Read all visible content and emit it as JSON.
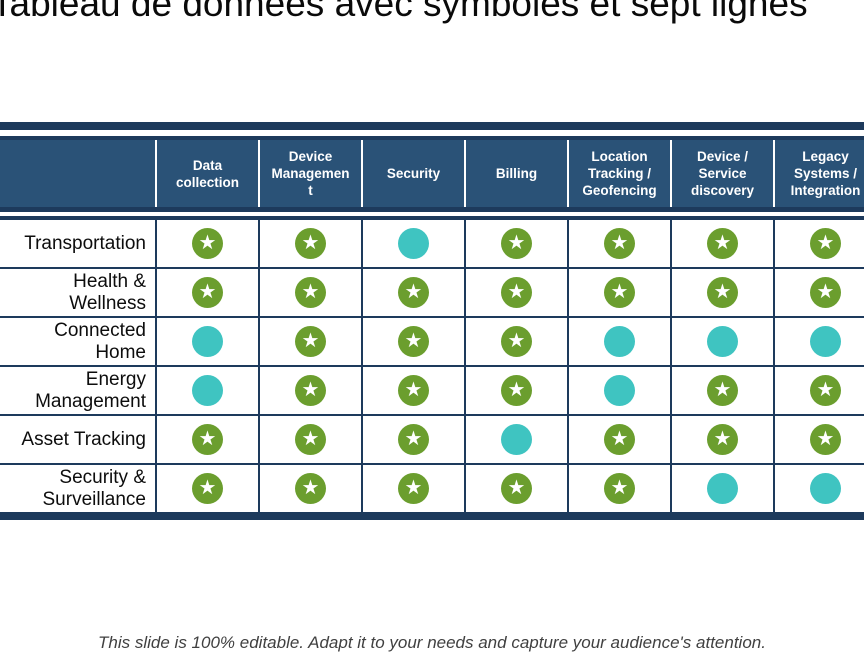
{
  "slide": {
    "title": "Tableau de données avec symboles et sept lignes",
    "footer_note": "This slide is 100% editable. Adapt it to your needs and capture your audience's attention."
  },
  "table": {
    "row_header_label": "",
    "columns": [
      "Data collection",
      "Device Management",
      "Security",
      "Billing",
      "Location Tracking / Geofencing",
      "Device / Service discovery",
      "Legacy Systems / Integration"
    ],
    "rows": [
      {
        "label": "Transportation",
        "cells": [
          "star",
          "star",
          "circle",
          "star",
          "star",
          "star",
          "star"
        ]
      },
      {
        "label": "Health & Wellness",
        "cells": [
          "star",
          "star",
          "star",
          "star",
          "star",
          "star",
          "star"
        ]
      },
      {
        "label": "Connected Home",
        "cells": [
          "circle",
          "star",
          "star",
          "star",
          "circle",
          "circle",
          "circle"
        ]
      },
      {
        "label": "Energy Management",
        "cells": [
          "circle",
          "star",
          "star",
          "star",
          "circle",
          "star",
          "star"
        ]
      },
      {
        "label": "Asset Tracking",
        "cells": [
          "star",
          "star",
          "star",
          "circle",
          "star",
          "star",
          "star"
        ]
      },
      {
        "label": "Security & Surveillance",
        "cells": [
          "star",
          "star",
          "star",
          "star",
          "star",
          "circle",
          "circle"
        ]
      }
    ],
    "symbols": {
      "star": {
        "icon": "star-badge-icon",
        "glyph": "★"
      },
      "circle": {
        "icon": "dot-badge-icon",
        "glyph": ""
      }
    }
  },
  "colors": {
    "header_bg": "#2a5277",
    "navy": "#1d3a5c",
    "star_green": "#6b9e2e",
    "dot_teal": "#3fc4c1",
    "title_color": "#0a0a0a",
    "footer_color": "#404040"
  }
}
